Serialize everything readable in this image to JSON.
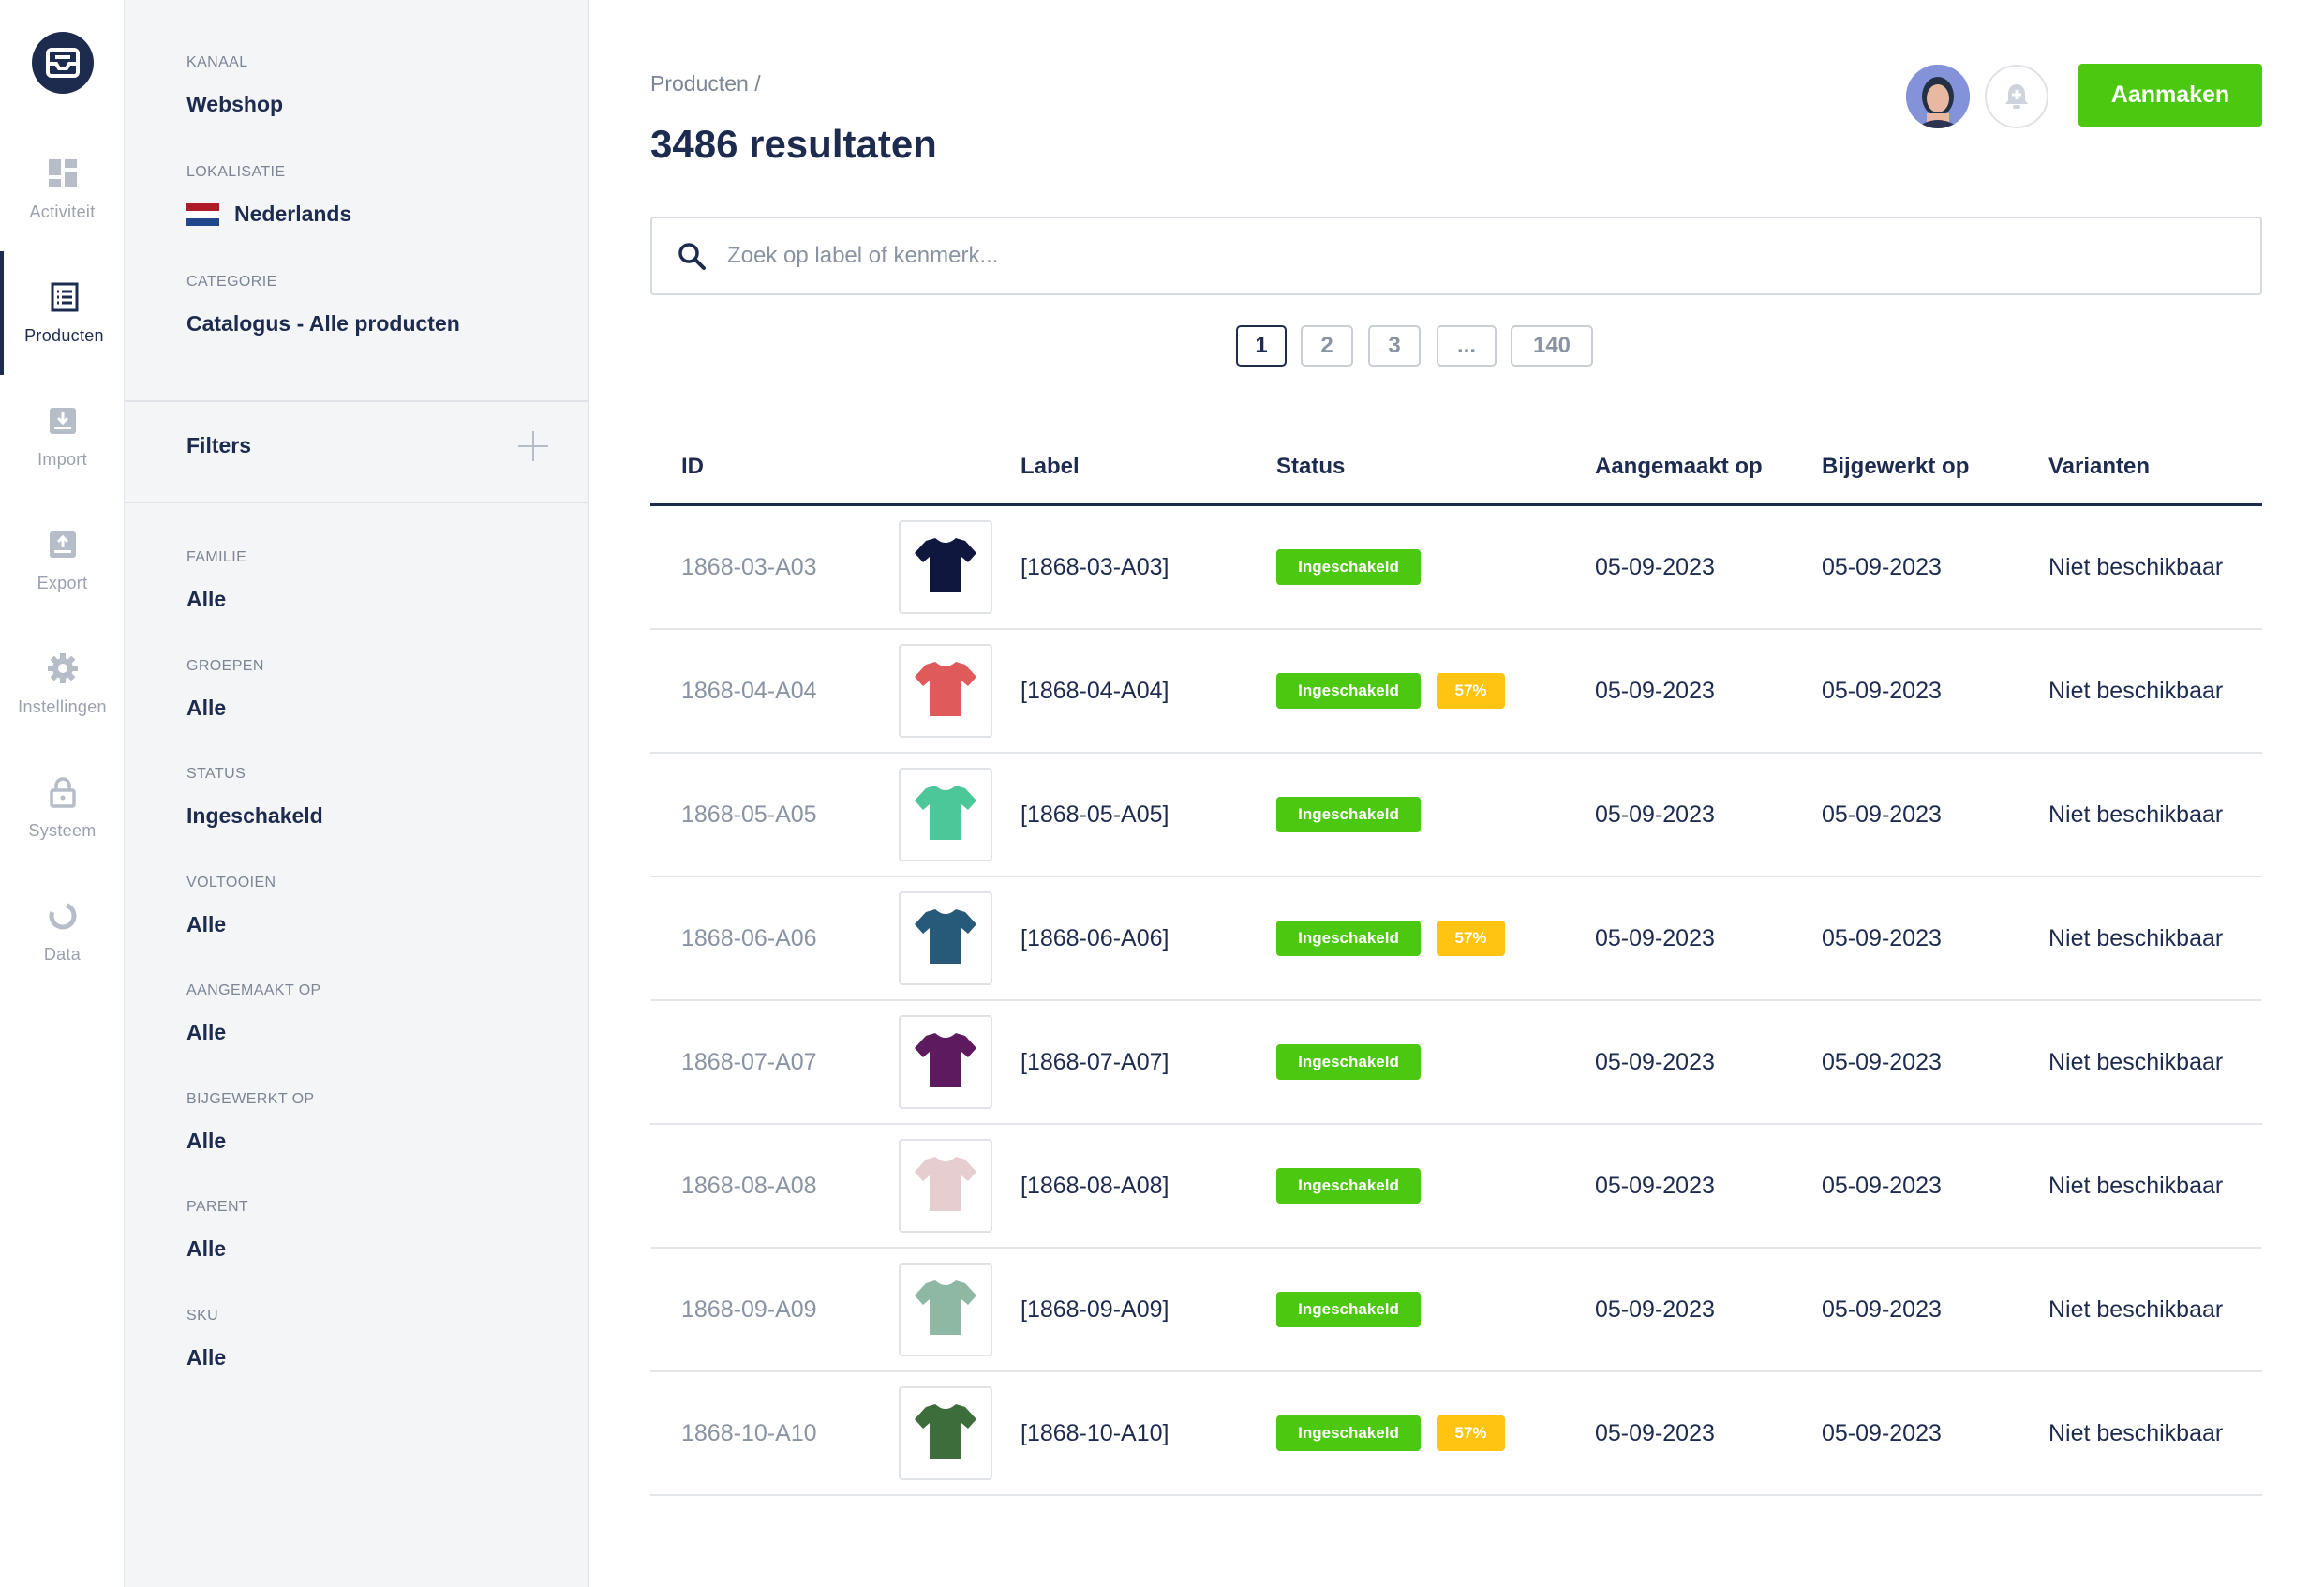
{
  "sidebar": {
    "items": [
      {
        "label": "Activiteit",
        "icon": "dashboard-icon",
        "active": false
      },
      {
        "label": "Producten",
        "icon": "list-icon",
        "active": true
      },
      {
        "label": "Import",
        "icon": "import-icon",
        "active": false
      },
      {
        "label": "Export",
        "icon": "export-icon",
        "active": false
      },
      {
        "label": "Instellingen",
        "icon": "gear-icon",
        "active": false
      },
      {
        "label": "Systeem",
        "icon": "lock-icon",
        "active": false
      },
      {
        "label": "Data",
        "icon": "donut-icon",
        "active": false
      }
    ]
  },
  "panel": {
    "channel": {
      "label": "KANAAL",
      "value": "Webshop"
    },
    "locale": {
      "label": "LOKALISATIE",
      "value": "Nederlands",
      "flag_colors": [
        "#ae1c28",
        "#ffffff",
        "#21468b"
      ]
    },
    "category": {
      "label": "CATEGORIE",
      "value": "Catalogus - Alle producten"
    },
    "filters_title": "Filters",
    "filters": [
      {
        "label": "FAMILIE",
        "value": "Alle"
      },
      {
        "label": "GROEPEN",
        "value": "Alle"
      },
      {
        "label": "STATUS",
        "value": "Ingeschakeld"
      },
      {
        "label": "VOLTOOIEN",
        "value": "Alle"
      },
      {
        "label": "AANGEMAAKT OP",
        "value": "Alle"
      },
      {
        "label": "BIJGEWERKT OP",
        "value": "Alle"
      },
      {
        "label": "PARENT",
        "value": "Alle"
      },
      {
        "label": "SKU",
        "value": "Alle"
      }
    ]
  },
  "header": {
    "breadcrumb": "Producten /",
    "title": "3486 resultaten",
    "create_label": "Aanmaken"
  },
  "search": {
    "placeholder": "Zoek op label of kenmerk..."
  },
  "pagination": [
    "1",
    "2",
    "3",
    "...",
    "140"
  ],
  "table": {
    "columns": [
      "ID",
      "Label",
      "Status",
      "Aangemaakt op",
      "Bijgewerkt op",
      "Varianten"
    ],
    "rows": [
      {
        "id": "1868-03-A03",
        "label": "[1868-03-A03]",
        "status": "Ingeschakeld",
        "completeness": "",
        "created": "05-09-2023",
        "updated": "05-09-2023",
        "variants": "Niet beschikbaar",
        "shirt_color": "#10173f"
      },
      {
        "id": "1868-04-A04",
        "label": "[1868-04-A04]",
        "status": "Ingeschakeld",
        "completeness": "57%",
        "created": "05-09-2023",
        "updated": "05-09-2023",
        "variants": "Niet beschikbaar",
        "shirt_color": "#df5a5a"
      },
      {
        "id": "1868-05-A05",
        "label": "[1868-05-A05]",
        "status": "Ingeschakeld",
        "completeness": "",
        "created": "05-09-2023",
        "updated": "05-09-2023",
        "variants": "Niet beschikbaar",
        "shirt_color": "#4cc79a"
      },
      {
        "id": "1868-06-A06",
        "label": "[1868-06-A06]",
        "status": "Ingeschakeld",
        "completeness": "57%",
        "created": "05-09-2023",
        "updated": "05-09-2023",
        "variants": "Niet beschikbaar",
        "shirt_color": "#265a78"
      },
      {
        "id": "1868-07-A07",
        "label": "[1868-07-A07]",
        "status": "Ingeschakeld",
        "completeness": "",
        "created": "05-09-2023",
        "updated": "05-09-2023",
        "variants": "Niet beschikbaar",
        "shirt_color": "#5d1a5e"
      },
      {
        "id": "1868-08-A08",
        "label": "[1868-08-A08]",
        "status": "Ingeschakeld",
        "completeness": "",
        "created": "05-09-2023",
        "updated": "05-09-2023",
        "variants": "Niet beschikbaar",
        "shirt_color": "#e6cdd0"
      },
      {
        "id": "1868-09-A09",
        "label": "[1868-09-A09]",
        "status": "Ingeschakeld",
        "completeness": "",
        "created": "05-09-2023",
        "updated": "05-09-2023",
        "variants": "Niet beschikbaar",
        "shirt_color": "#8fb8a4"
      },
      {
        "id": "1868-10-A10",
        "label": "[1868-10-A10]",
        "status": "Ingeschakeld",
        "completeness": "57%",
        "created": "05-09-2023",
        "updated": "05-09-2023",
        "variants": "Niet beschikbaar",
        "shirt_color": "#3c6d3a"
      }
    ]
  }
}
